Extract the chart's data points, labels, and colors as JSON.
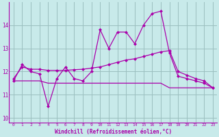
{
  "title": "",
  "xlabel": "Windchill (Refroidissement éolien,°C)",
  "ylabel": "",
  "bg_color": "#c8eaea",
  "line_color": "#aa00aa",
  "grid_color": "#9bbfbf",
  "xlim": [
    -0.5,
    23.5
  ],
  "ylim": [
    9.8,
    15.0
  ],
  "yticks": [
    10,
    11,
    12,
    13,
    14
  ],
  "xticks": [
    0,
    1,
    2,
    3,
    4,
    5,
    6,
    7,
    8,
    9,
    10,
    11,
    12,
    13,
    14,
    15,
    16,
    17,
    18,
    19,
    20,
    21,
    22,
    23
  ],
  "series1_x": [
    0,
    1,
    2,
    3,
    4,
    5,
    6,
    7,
    8,
    9,
    10,
    11,
    12,
    13,
    14,
    15,
    16,
    17,
    18,
    19,
    20,
    21,
    22,
    23
  ],
  "series1_y": [
    11.6,
    12.3,
    12.0,
    11.9,
    10.5,
    11.7,
    12.2,
    11.7,
    11.6,
    12.0,
    13.8,
    13.0,
    13.7,
    13.7,
    13.2,
    14.0,
    14.5,
    14.6,
    12.8,
    11.8,
    11.7,
    11.6,
    11.5,
    11.3
  ],
  "series2_x": [
    0,
    1,
    2,
    3,
    4,
    5,
    6,
    7,
    8,
    9,
    10,
    11,
    12,
    13,
    14,
    15,
    16,
    17,
    18,
    19,
    20,
    21,
    22,
    23
  ],
  "series2_y": [
    11.7,
    12.2,
    12.1,
    12.1,
    12.05,
    12.05,
    12.05,
    12.08,
    12.1,
    12.15,
    12.2,
    12.3,
    12.4,
    12.5,
    12.55,
    12.65,
    12.75,
    12.85,
    12.9,
    12.0,
    11.85,
    11.7,
    11.6,
    11.3
  ],
  "series3_x": [
    0,
    1,
    2,
    3,
    4,
    5,
    6,
    7,
    8,
    9,
    10,
    11,
    12,
    13,
    14,
    15,
    16,
    17,
    18,
    19,
    20,
    21,
    22,
    23
  ],
  "series3_y": [
    11.6,
    11.6,
    11.6,
    11.6,
    11.5,
    11.5,
    11.5,
    11.5,
    11.5,
    11.5,
    11.5,
    11.5,
    11.5,
    11.5,
    11.5,
    11.5,
    11.5,
    11.5,
    11.3,
    11.3,
    11.3,
    11.3,
    11.3,
    11.3
  ]
}
